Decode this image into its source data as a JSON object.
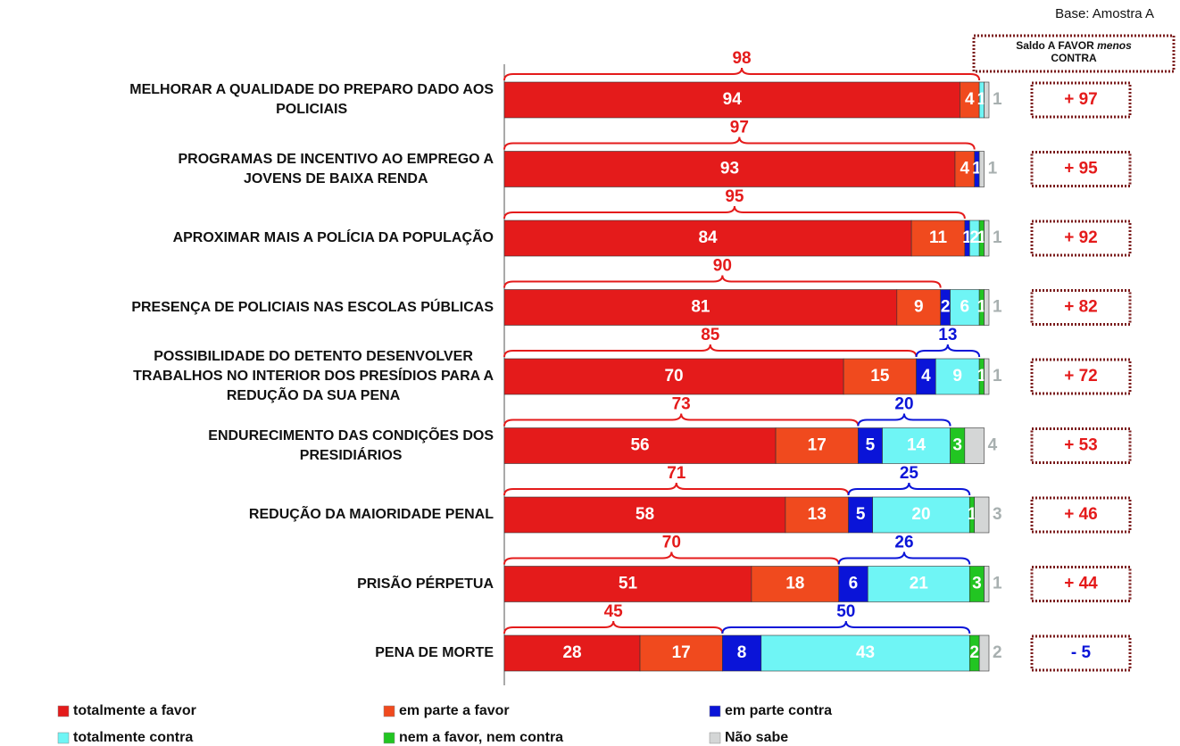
{
  "chart_data": {
    "type": "stacked-bar-horizontal",
    "note_base": "Base: Amostra A",
    "saldo_header": [
      "Saldo A FAVOR",
      "menos",
      "CONTRA"
    ],
    "categories": [
      "MELHORAR A QUALIDADE DO PREPARO DADO AOS\nPOLICIAIS",
      "PROGRAMAS DE INCENTIVO AO EMPREGO A\nJOVENS DE BAIXA RENDA",
      "APROXIMAR MAIS A POLÍCIA DA POPULAÇÃO",
      "PRESENÇA DE POLICIAIS NAS ESCOLAS PÚBLICAS",
      "POSSIBILIDADE DO DETENTO DESENVOLVER\nTRABALHOS NO INTERIOR DOS PRESÍDIOS PARA A\nREDUÇÃO DA SUA PENA",
      "ENDURECIMENTO DAS CONDIÇÕES DOS\nPRESIDIÁRIOS",
      "REDUÇÃO DA MAIORIDADE PENAL",
      "PRISÃO PÉRPETUA",
      "PENA DE MORTE"
    ],
    "xlim": [
      0,
      100
    ],
    "series": [
      {
        "name": "totalmente a favor",
        "color": "#e41b1b",
        "values": [
          94,
          93,
          84,
          81,
          70,
          56,
          58,
          51,
          28
        ]
      },
      {
        "name": "em parte a favor",
        "color": "#f04a1e",
        "values": [
          4,
          4,
          11,
          9,
          15,
          17,
          13,
          18,
          17
        ]
      },
      {
        "name": "em parte contra",
        "color": "#0a14d8",
        "values": [
          null,
          1,
          1,
          2,
          4,
          5,
          5,
          6,
          8
        ]
      },
      {
        "name": "totalmente contra",
        "color": "#6ff5f5",
        "values": [
          1,
          null,
          2,
          6,
          9,
          14,
          20,
          21,
          43
        ]
      },
      {
        "name": "nem a favor, nem contra",
        "color": "#22c522",
        "values": [
          null,
          null,
          1,
          1,
          1,
          3,
          1,
          3,
          2
        ]
      },
      {
        "name": "Não sabe",
        "color": "#d4d6d6",
        "values": [
          1,
          1,
          1,
          1,
          1,
          4,
          3,
          1,
          2
        ]
      }
    ],
    "favor_totals": [
      98,
      97,
      95,
      90,
      85,
      73,
      71,
      70,
      45
    ],
    "contra_totals": [
      null,
      null,
      null,
      null,
      13,
      20,
      25,
      26,
      50
    ],
    "saldo": {
      "values": [
        97,
        95,
        92,
        82,
        72,
        53,
        46,
        44,
        -5
      ],
      "value_labels": [
        "+ 97",
        "+ 95",
        "+ 92",
        "+ 82",
        "+ 72",
        "+ 53",
        "+ 46",
        "+ 44",
        "- 5"
      ]
    }
  }
}
